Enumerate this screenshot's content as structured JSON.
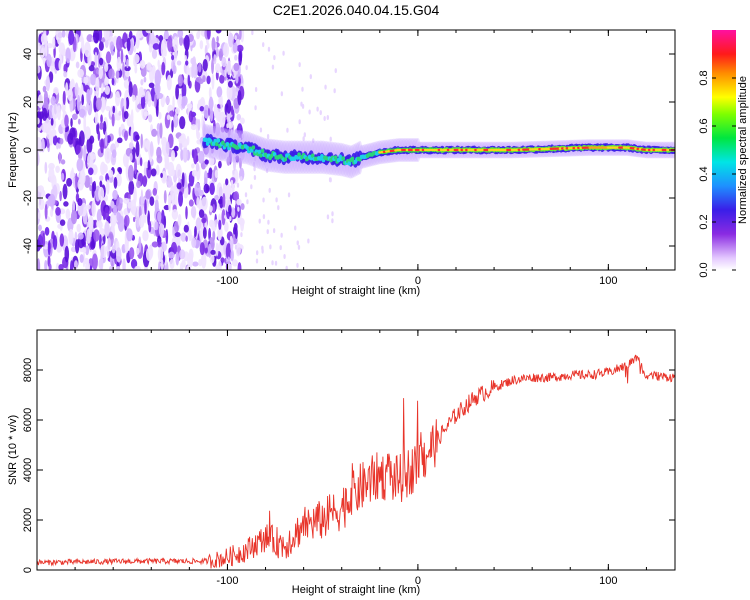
{
  "title": "C2E1.2026.040.04.15.G04",
  "colors": {
    "snr_line": "#e8342a",
    "cluster_purple": "#6a1fe8",
    "axis": "#000000"
  },
  "chart_data": [
    {
      "type": "heatmap",
      "name": "spectrogram",
      "xlabel": "Height of straight line (km)",
      "ylabel": "Frequency (Hz)",
      "xlim": [
        -200,
        135
      ],
      "ylim": [
        -50,
        50
      ],
      "xticks": [
        -100,
        0,
        100
      ],
      "xtick_labels": [
        "-100",
        "0",
        "100"
      ],
      "yticks": [
        -40,
        -20,
        0,
        20,
        40
      ],
      "ytick_labels": [
        "-40",
        "-20",
        "0",
        "20",
        "40"
      ],
      "trace": {
        "x": [
          -112,
          -100,
          -90,
          -80,
          -70,
          -60,
          -50,
          -40,
          -35,
          -30,
          -20,
          -10,
          0,
          20,
          50,
          90,
          110,
          120,
          135
        ],
        "freq": [
          4,
          2,
          1,
          -2,
          -3,
          -3,
          -3,
          -4,
          -5,
          -3,
          -1,
          0,
          0,
          0,
          0,
          1,
          1,
          0,
          0
        ]
      },
      "noise_region_x": [
        -200,
        -100
      ],
      "colorbar": {
        "label": "Normalized spectral amplitude",
        "range": [
          0,
          1
        ],
        "ticks": [
          0.0,
          0.2,
          0.4,
          0.6,
          0.8
        ],
        "tick_labels": [
          "0.0",
          "0.2",
          "0.4",
          "0.6",
          "0.8"
        ]
      }
    },
    {
      "type": "line",
      "name": "snr",
      "xlabel": "Height of straight line (km)",
      "ylabel": "SNR (10 * v/v)",
      "xlim": [
        -200,
        135
      ],
      "ylim": [
        0,
        9600
      ],
      "xticks": [
        -100,
        0,
        100
      ],
      "xtick_labels": [
        "-100",
        "0",
        "100"
      ],
      "yticks": [
        0,
        2000,
        4000,
        6000,
        8000
      ],
      "ytick_labels": [
        "0",
        "2000",
        "4000",
        "6000",
        "8000"
      ],
      "series": [
        {
          "name": "SNR",
          "x": [
            -200,
            -150,
            -110,
            -100,
            -90,
            -80,
            -70,
            -60,
            -50,
            -40,
            -30,
            -20,
            -10,
            0,
            10,
            20,
            30,
            40,
            50,
            60,
            70,
            80,
            90,
            100,
            110,
            115,
            120,
            135
          ],
          "y": [
            300,
            350,
            350,
            500,
            800,
            1300,
            1000,
            1800,
            2000,
            2500,
            3300,
            3800,
            3600,
            4200,
            5200,
            6200,
            6900,
            7300,
            7600,
            7700,
            7700,
            7800,
            7800,
            7900,
            8200,
            8500,
            7800,
            7700
          ]
        }
      ]
    }
  ]
}
